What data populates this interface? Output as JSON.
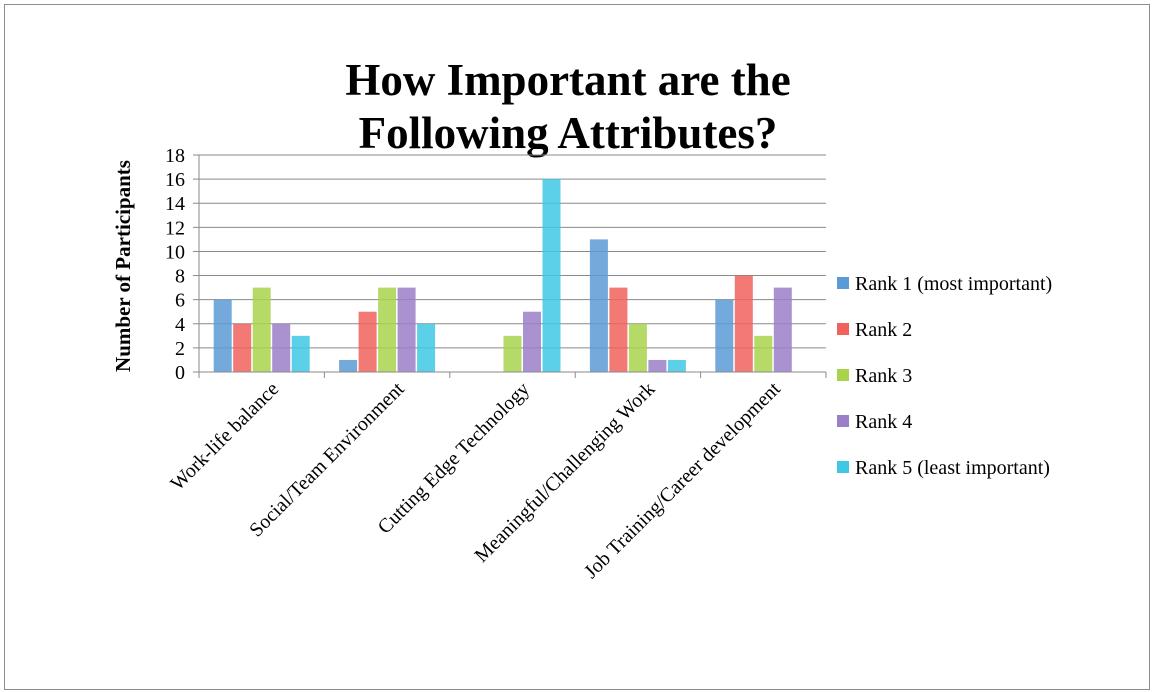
{
  "chart_data": {
    "type": "bar",
    "title": "How Important are the Following Attributes?",
    "title_lines": [
      "How Important are the",
      "Following Attributes?"
    ],
    "xlabel": "",
    "ylabel": "Number of Participants",
    "ylim": [
      0,
      18
    ],
    "yticks": [
      0,
      2,
      4,
      6,
      8,
      10,
      12,
      14,
      16,
      18
    ],
    "grid": true,
    "legend_position": "right",
    "categories": [
      "Work-life balance",
      "Social/Team Environment",
      "Cutting Edge Technology",
      "Meaningful/Challenging Work",
      "Job Training/Career development"
    ],
    "series": [
      {
        "name": "Rank 1 (most important)",
        "color": "#5b9bd5",
        "values": [
          6,
          1,
          0,
          11,
          6
        ]
      },
      {
        "name": "Rank 2",
        "color": "#f0625c",
        "values": [
          4,
          5,
          0,
          7,
          8
        ]
      },
      {
        "name": "Rank 3",
        "color": "#a9d34d",
        "values": [
          7,
          7,
          3,
          4,
          3
        ]
      },
      {
        "name": "Rank 4",
        "color": "#9b7fc9",
        "values": [
          4,
          7,
          5,
          1,
          7
        ]
      },
      {
        "name": "Rank 5 (least important)",
        "color": "#3fc8e4",
        "values": [
          3,
          4,
          16,
          1,
          0
        ]
      }
    ]
  }
}
